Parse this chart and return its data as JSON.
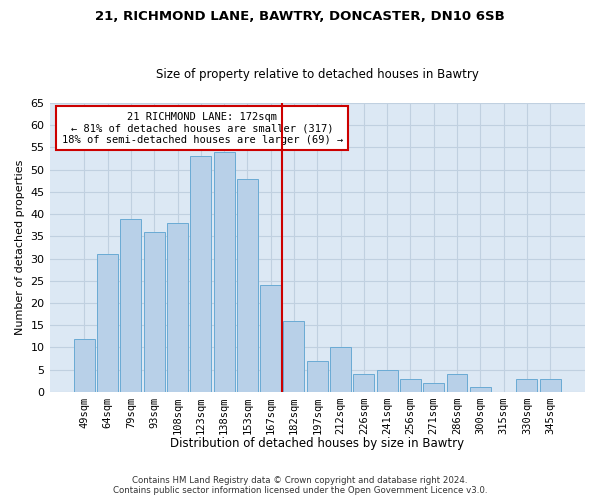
{
  "title_line1": "21, RICHMOND LANE, BAWTRY, DONCASTER, DN10 6SB",
  "title_line2": "Size of property relative to detached houses in Bawtry",
  "xlabel": "Distribution of detached houses by size in Bawtry",
  "ylabel": "Number of detached properties",
  "categories": [
    "49sqm",
    "64sqm",
    "79sqm",
    "93sqm",
    "108sqm",
    "123sqm",
    "138sqm",
    "153sqm",
    "167sqm",
    "182sqm",
    "197sqm",
    "212sqm",
    "226sqm",
    "241sqm",
    "256sqm",
    "271sqm",
    "286sqm",
    "300sqm",
    "315sqm",
    "330sqm",
    "345sqm"
  ],
  "values": [
    12,
    31,
    39,
    36,
    38,
    53,
    54,
    48,
    24,
    16,
    7,
    10,
    4,
    5,
    3,
    2,
    4,
    1,
    0,
    3,
    3
  ],
  "bar_color": "#b8d0e8",
  "bar_edgecolor": "#6aaad4",
  "grid_color": "#c0d0e0",
  "background_color": "#dce8f4",
  "vline_color": "#cc0000",
  "annotation_text": "21 RICHMOND LANE: 172sqm\n← 81% of detached houses are smaller (317)\n18% of semi-detached houses are larger (69) →",
  "annotation_box_edgecolor": "#cc0000",
  "ylim": [
    0,
    65
  ],
  "yticks": [
    0,
    5,
    10,
    15,
    20,
    25,
    30,
    35,
    40,
    45,
    50,
    55,
    60,
    65
  ],
  "footer_line1": "Contains HM Land Registry data © Crown copyright and database right 2024.",
  "footer_line2": "Contains public sector information licensed under the Open Government Licence v3.0."
}
